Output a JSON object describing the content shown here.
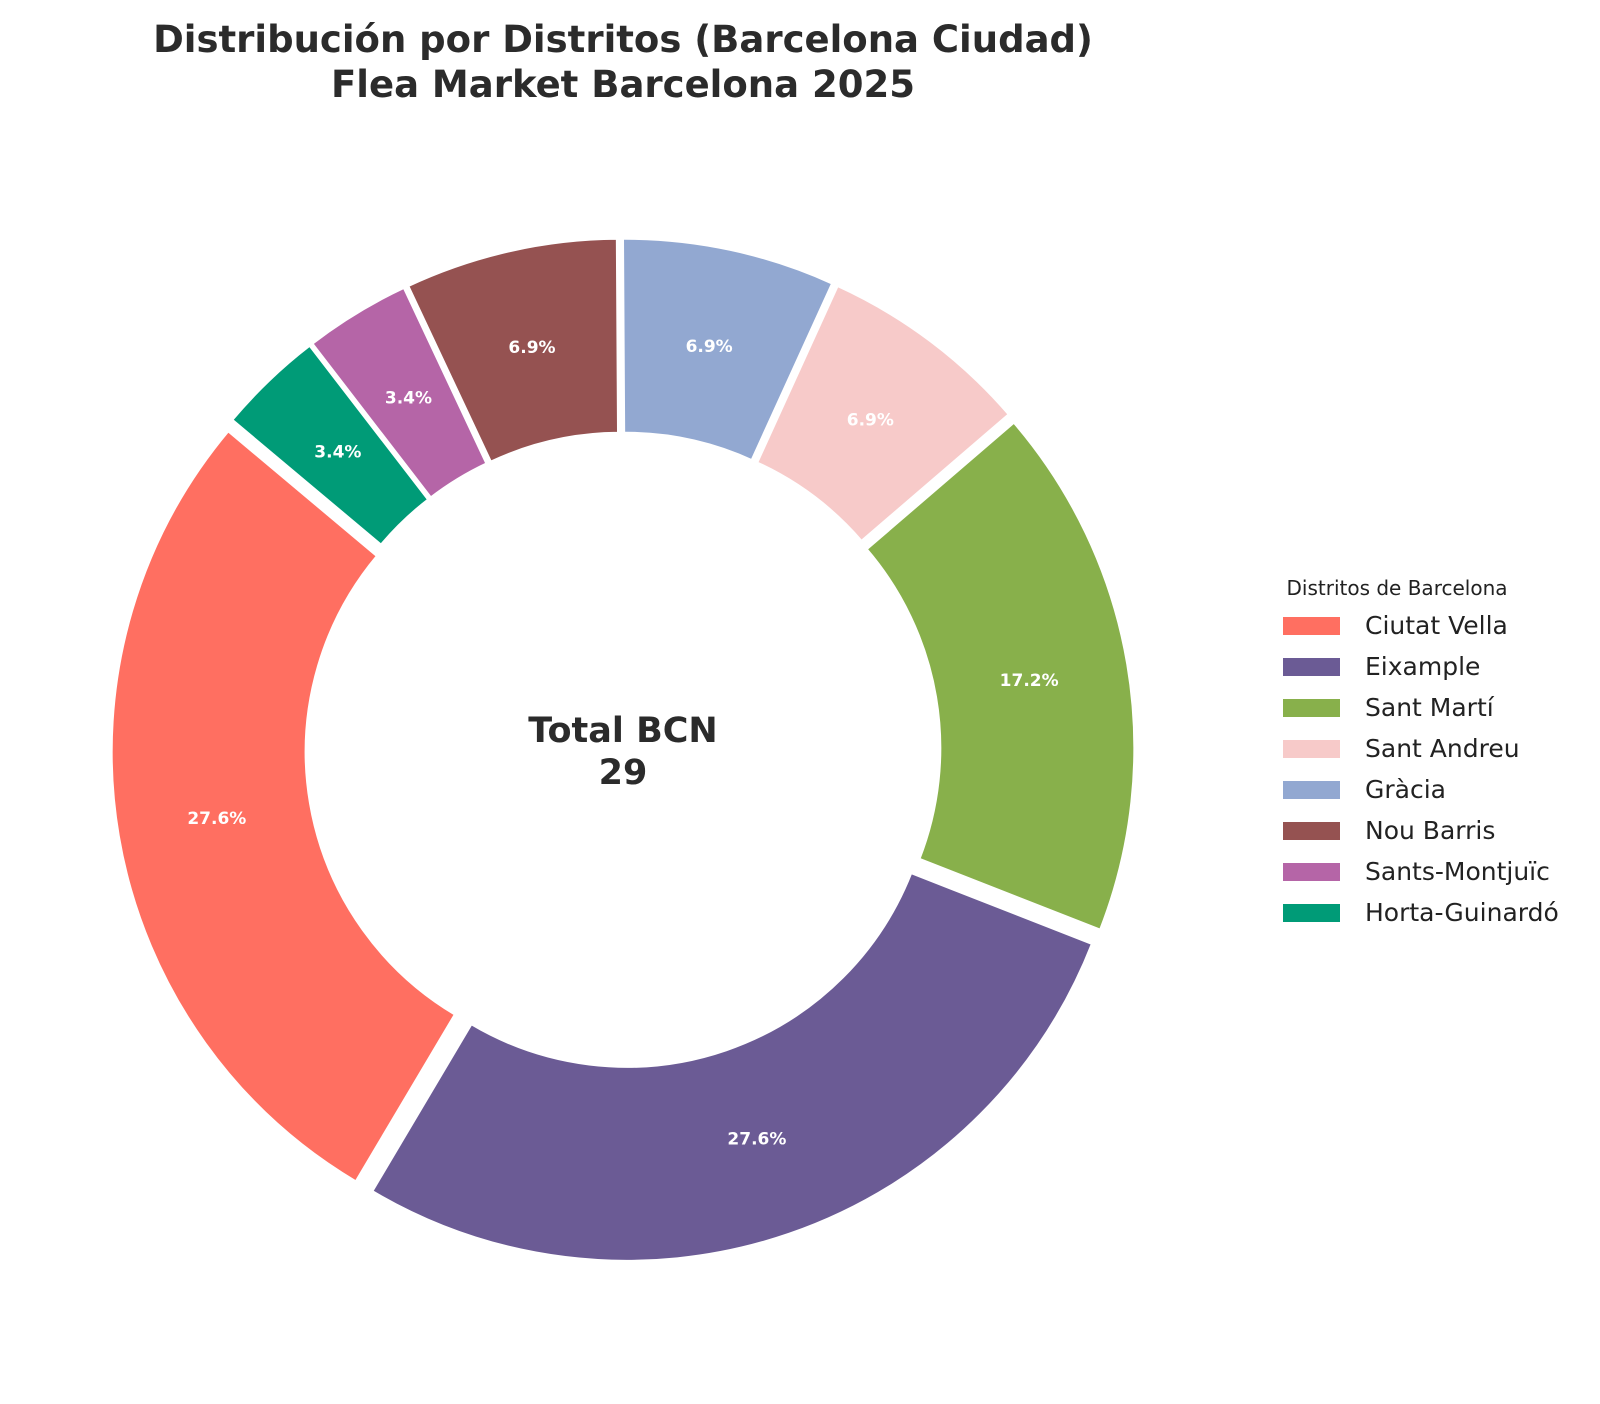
{
  "chart_data": {
    "type": "pie",
    "title": "Distribución por Distritos (Barcelona Ciudad)\nFlea Market Barcelona 2025",
    "title_lines": [
      "Distribución por Distritos (Barcelona Ciudad)",
      "Flea Market Barcelona 2025"
    ],
    "donut": true,
    "start_angle_deg": 140,
    "direction": "counterclockwise",
    "center_label": [
      "Total BCN",
      "29"
    ],
    "legend_title": "Distritos de Barcelona",
    "legend_position": "right",
    "categories": [
      "Ciutat Vella",
      "Eixample",
      "Sant Martí",
      "Sant Andreu",
      "Gràcia",
      "Nou Barris",
      "Sants-Montjuïc",
      "Horta-Guinardó"
    ],
    "values": [
      8,
      8,
      5,
      2,
      2,
      2,
      1,
      1
    ],
    "labels": [
      "27.6%",
      "27.6%",
      "17.2%",
      "6.9%",
      "6.9%",
      "6.9%",
      "3.4%",
      "3.4%"
    ],
    "colors": [
      "#ff6f61",
      "#6b5b95",
      "#88b04b",
      "#f7cac9",
      "#92a8d1",
      "#955251",
      "#b565a7",
      "#009b77"
    ]
  }
}
